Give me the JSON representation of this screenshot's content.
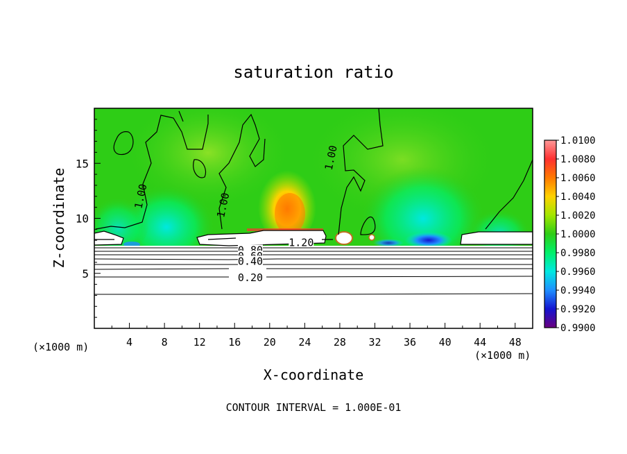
{
  "chart_data": {
    "type": "heatmap",
    "title": "saturation ratio",
    "xlabel": "X-coordinate",
    "ylabel": "Z-coordinate",
    "x_unit_left": "(×1000 m)",
    "x_unit_right": "(×1000 m)",
    "xlim": [
      0,
      50
    ],
    "ylim": [
      0,
      20
    ],
    "x_ticks": [
      4,
      8,
      12,
      16,
      20,
      24,
      28,
      32,
      36,
      40,
      44,
      48
    ],
    "y_ticks": [
      5,
      10,
      15
    ],
    "colorbar": {
      "labels": [
        "1.0100",
        "1.0080",
        "1.0060",
        "1.0040",
        "1.0020",
        "1.0000",
        "0.9980",
        "0.9960",
        "0.9940",
        "0.9920",
        "0.9900"
      ],
      "colors": [
        "#ff9999",
        "#ff3030",
        "#ff7a00",
        "#ffd200",
        "#a2e600",
        "#2ecd16",
        "#00f06a",
        "#00e8e0",
        "#1f8fff",
        "#1414d0",
        "#6a0080"
      ]
    },
    "contour_labels": [
      {
        "text": "1.00",
        "x": 5.3,
        "z": 12.0
      },
      {
        "text": "1.00",
        "x": 14.7,
        "z": 11.2
      },
      {
        "text": "1.00",
        "x": 27.0,
        "z": 15.5
      },
      {
        "text": "1.20",
        "x": 23.6,
        "z": 7.8
      },
      {
        "text": "0.80",
        "x": 17.8,
        "z": 7.1
      },
      {
        "text": "0.60",
        "x": 17.8,
        "z": 6.55
      },
      {
        "text": "0.40",
        "x": 17.8,
        "z": 6.1
      },
      {
        "text": "0.20",
        "x": 17.8,
        "z": 4.6
      }
    ],
    "contour_interval_text": "CONTOUR INTERVAL = 1.000E-01"
  }
}
